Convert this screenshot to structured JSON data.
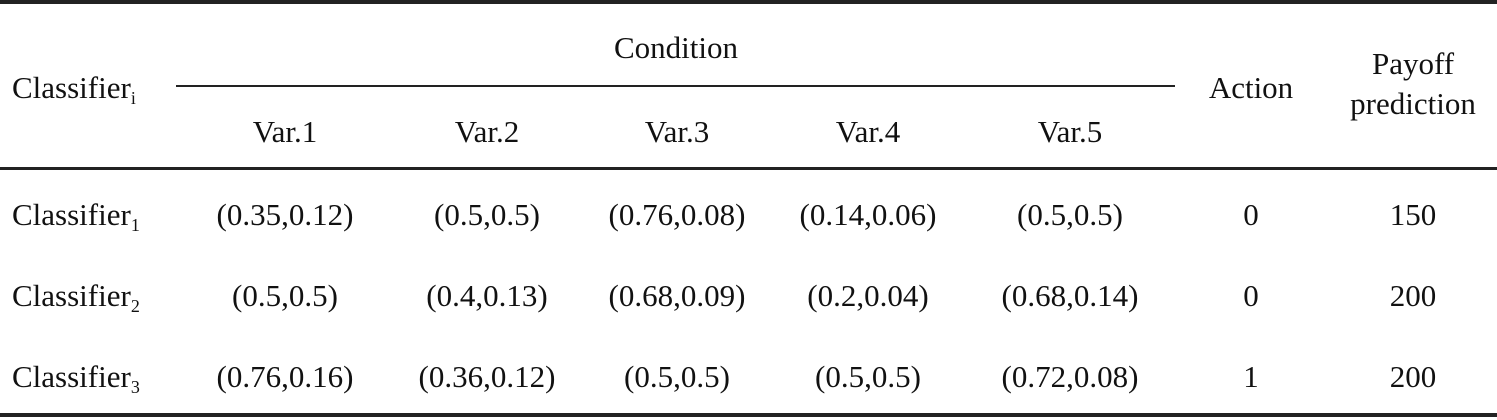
{
  "table": {
    "header": {
      "row_label": "Classifier",
      "row_label_sub": "i",
      "group_label": "Condition",
      "vars": [
        "Var.1",
        "Var.2",
        "Var.3",
        "Var.4",
        "Var.5"
      ],
      "action": "Action",
      "payoff_line1": "Payoff",
      "payoff_line2": "prediction"
    },
    "rows": [
      {
        "label": "Classifier",
        "sub": "1",
        "vars": [
          "(0.35,0.12)",
          "(0.5,0.5)",
          "(0.76,0.08)",
          "(0.14,0.06)",
          "(0.5,0.5)"
        ],
        "action": "0",
        "payoff": "150"
      },
      {
        "label": "Classifier",
        "sub": "2",
        "vars": [
          "(0.5,0.5)",
          "(0.4,0.13)",
          "(0.68,0.09)",
          "(0.2,0.04)",
          "(0.68,0.14)"
        ],
        "action": "0",
        "payoff": "200"
      },
      {
        "label": "Classifier",
        "sub": "3",
        "vars": [
          "(0.76,0.16)",
          "(0.36,0.12)",
          "(0.5,0.5)",
          "(0.5,0.5)",
          "(0.72,0.08)"
        ],
        "action": "1",
        "payoff": "200"
      }
    ]
  }
}
